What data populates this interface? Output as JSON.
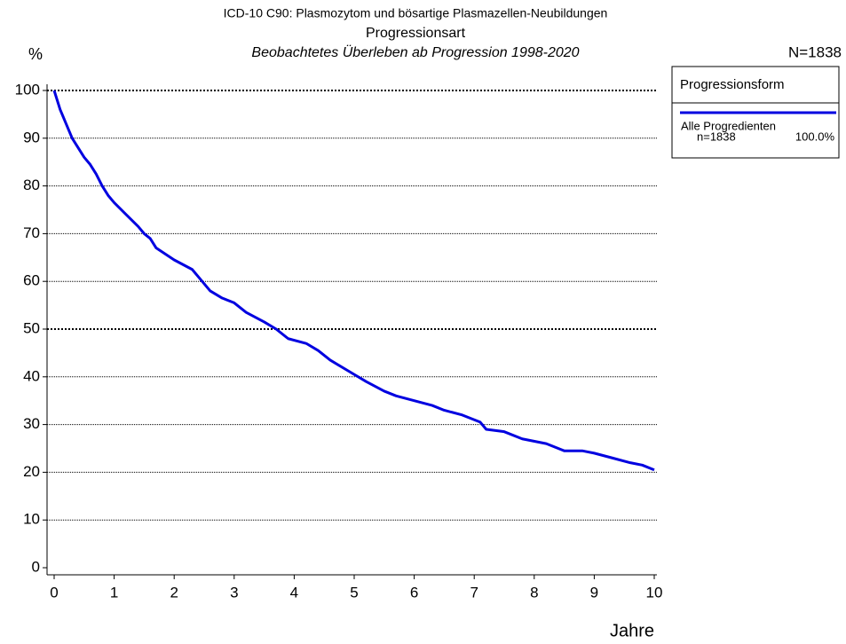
{
  "chart_data": {
    "type": "line",
    "title": "ICD-10 C90: Plasmozytom und bösartige Plasmazellen-Neubildungen",
    "subtitle": "Progressionsart",
    "subtitle2": "Beobachtetes Überleben ab Progression 1998-2020",
    "total_label": "N=1838",
    "y_label": "%",
    "x_label": "Jahre",
    "legend_title": "Progressionsform",
    "x": [
      0,
      0.1,
      0.2,
      0.3,
      0.4,
      0.5,
      0.6,
      0.7,
      0.8,
      0.9,
      1,
      1.2,
      1.4,
      1.5,
      1.6,
      1.7,
      2,
      2.3,
      2.4,
      2.6,
      2.8,
      3,
      3.2,
      3.5,
      3.7,
      3.9,
      4.2,
      4.4,
      4.6,
      5,
      5.2,
      5.5,
      5.7,
      6,
      6.3,
      6.5,
      6.8,
      7.1,
      7.2,
      7.5,
      7.8,
      8.2,
      8.5,
      8.8,
      9,
      9.3,
      9.6,
      9.8,
      10
    ],
    "series": [
      {
        "name": "Alle Progredienten",
        "n_label": "n=1838",
        "share_label": "100.0%",
        "color": "#0000e0",
        "values": [
          100,
          96,
          93,
          90,
          88,
          86,
          84.5,
          82.5,
          80,
          78,
          76.5,
          74,
          71.5,
          70,
          69,
          67,
          64.5,
          62.5,
          61,
          58,
          56.5,
          55.5,
          53.5,
          51.5,
          50,
          48,
          47,
          45.5,
          43.5,
          40.5,
          39,
          37,
          36,
          35,
          34,
          33,
          32,
          30.5,
          29,
          28.5,
          27,
          26,
          24.5,
          24.5,
          24,
          23,
          22,
          21.5,
          20.5
        ]
      }
    ],
    "xlim": [
      0,
      10
    ],
    "ylim": [
      0,
      100
    ],
    "xticks": [
      0,
      1,
      2,
      3,
      4,
      5,
      6,
      7,
      8,
      9,
      10
    ],
    "yticks": [
      0,
      10,
      20,
      30,
      40,
      50,
      60,
      70,
      80,
      90,
      100
    ],
    "grid": true,
    "bold_grid": [
      50,
      100
    ]
  }
}
